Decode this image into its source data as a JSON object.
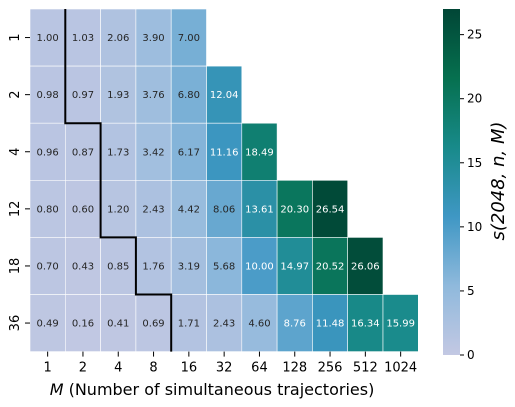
{
  "chart_data": {
    "type": "heatmap",
    "x_categories": [
      "1",
      "2",
      "4",
      "8",
      "16",
      "32",
      "64",
      "128",
      "256",
      "512",
      "1024"
    ],
    "y_categories": [
      "1",
      "2",
      "4",
      "12",
      "18",
      "36"
    ],
    "values": [
      [
        1.0,
        1.03,
        2.06,
        3.9,
        7.0,
        null,
        null,
        null,
        null,
        null,
        null
      ],
      [
        0.98,
        0.97,
        1.93,
        3.76,
        6.8,
        12.04,
        null,
        null,
        null,
        null,
        null
      ],
      [
        0.96,
        0.87,
        1.73,
        3.42,
        6.17,
        11.16,
        18.49,
        null,
        null,
        null,
        null
      ],
      [
        0.8,
        0.6,
        1.2,
        2.43,
        4.42,
        8.06,
        13.61,
        20.3,
        26.54,
        null,
        null
      ],
      [
        0.7,
        0.43,
        0.85,
        1.76,
        3.19,
        5.68,
        10.0,
        14.97,
        20.52,
        26.06,
        null
      ],
      [
        0.49,
        0.16,
        0.41,
        0.69,
        1.71,
        2.43,
        4.6,
        8.76,
        11.48,
        16.34,
        15.99
      ]
    ],
    "xlabel_italic": "M",
    "xlabel_rest": " (Number of simultaneous trajectories)",
    "ylabel": "",
    "colorbar": {
      "label": "s(2048, n, M)",
      "range": [
        0,
        27
      ],
      "ticks": [
        "0",
        "5",
        "10",
        "15",
        "20",
        "25"
      ],
      "colormap": "PuBuGn",
      "colors": [
        "#c3c8e3",
        "#8fb9dc",
        "#3f97c4",
        "#188a8a",
        "#06704f",
        "#014636"
      ]
    },
    "boundary_color": "#000000"
  }
}
